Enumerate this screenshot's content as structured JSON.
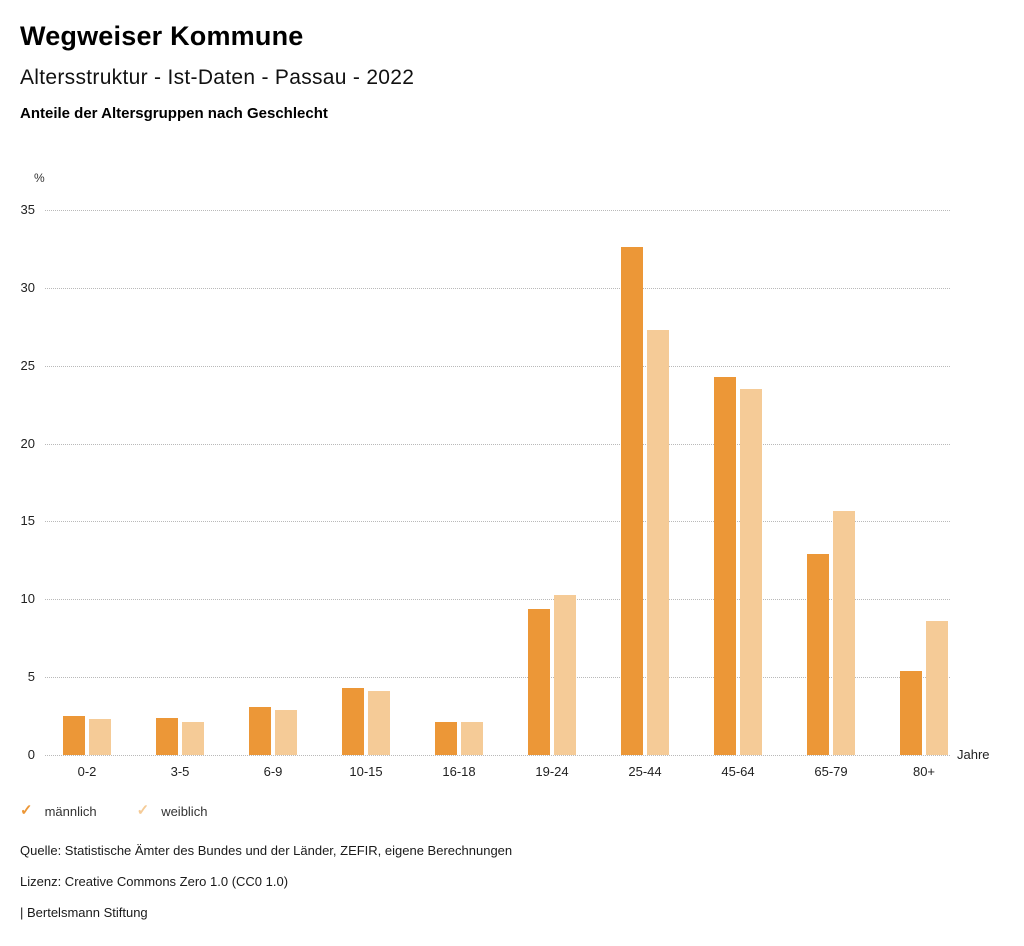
{
  "header": {
    "app_title": "Wegweiser Kommune",
    "page_title": "Altersstruktur - Ist-Daten - Passau - 2022"
  },
  "chart_data": {
    "type": "bar",
    "title": "Anteile der Altersgruppen nach Geschlecht",
    "ylabel": "%",
    "xlabel": "Jahre",
    "categories": [
      "0-2",
      "3-5",
      "6-9",
      "10-15",
      "16-18",
      "19-24",
      "25-44",
      "45-64",
      "65-79",
      "80+"
    ],
    "series": [
      {
        "name": "männlich",
        "color": "#EC9737",
        "values": [
          2.5,
          2.4,
          3.1,
          4.3,
          2.1,
          9.4,
          32.6,
          24.3,
          12.9,
          5.4
        ]
      },
      {
        "name": "weiblich",
        "color": "#F5CB97",
        "values": [
          2.3,
          2.1,
          2.9,
          4.1,
          2.1,
          10.3,
          27.3,
          23.5,
          15.7,
          8.6
        ]
      }
    ],
    "ylim": [
      0,
      35
    ],
    "ytick_step": 5,
    "grid": "horizontal dotted",
    "gridline_color": "#b9b9b9",
    "legend_position": "bottom-left"
  },
  "icons": {
    "legend_check": "✓"
  },
  "footer": {
    "source": "Quelle: Statistische Ämter des Bundes und der Länder, ZEFIR, eigene Berechnungen",
    "license": "Lizenz: Creative Commons Zero 1.0 (CC0 1.0)",
    "attribution": "| Bertelsmann Stiftung"
  }
}
